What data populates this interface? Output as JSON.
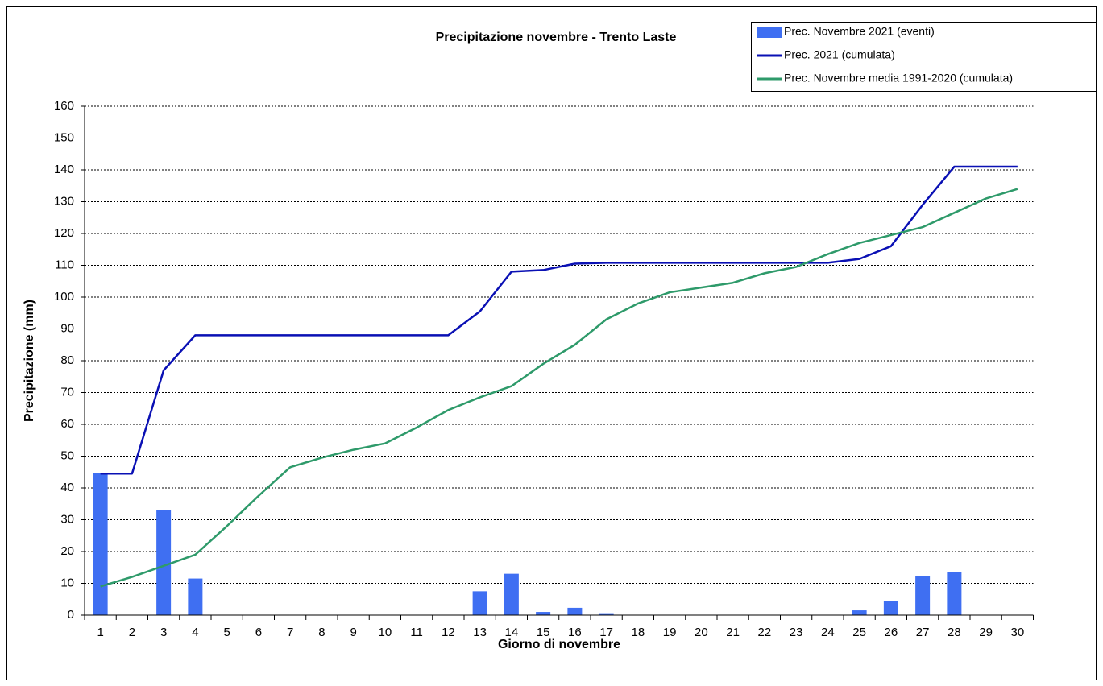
{
  "chart_data": {
    "type": "bar",
    "title": "Precipitazione novembre - Trento Laste",
    "xlabel": "Giorno di novembre",
    "ylabel": "Precipitazione (mm)",
    "categories": [
      "1",
      "2",
      "3",
      "4",
      "5",
      "6",
      "7",
      "8",
      "9",
      "10",
      "11",
      "12",
      "13",
      "14",
      "15",
      "16",
      "17",
      "18",
      "19",
      "20",
      "21",
      "22",
      "23",
      "24",
      "25",
      "26",
      "27",
      "28",
      "29",
      "30"
    ],
    "series": [
      {
        "name": "Prec. Novembre 2021 (eventi)",
        "type": "bar",
        "color": "#3f6ff2",
        "values": [
          44.7,
          0,
          33,
          11.5,
          0,
          0,
          0,
          0,
          0,
          0,
          0,
          0,
          7.5,
          13,
          1,
          2.3,
          0.6,
          0,
          0,
          0,
          0,
          0,
          0,
          0,
          1.5,
          4.5,
          12.3,
          13.5,
          0,
          0
        ]
      },
      {
        "name": "Prec. 2021 (cumulata)",
        "type": "line",
        "color": "#0a10b4",
        "values": [
          44.5,
          44.5,
          77,
          88,
          88,
          88,
          88,
          88,
          88,
          88,
          88,
          88,
          95.5,
          108,
          108.5,
          110.5,
          110.8,
          110.8,
          110.8,
          110.8,
          110.8,
          110.8,
          110.8,
          110.8,
          112,
          116,
          129,
          141,
          141,
          141
        ]
      },
      {
        "name": "Prec. Novembre media 1991-2020 (cumulata)",
        "type": "line",
        "color": "#2e9a6a",
        "values": [
          9,
          12,
          15.5,
          19,
          28,
          37.5,
          46.5,
          49.5,
          52,
          54,
          59,
          64.5,
          68.5,
          72,
          79,
          85,
          93,
          98,
          101.5,
          103,
          104.5,
          107.5,
          109.5,
          113.5,
          117,
          119.5,
          122,
          126.5,
          131,
          134
        ]
      }
    ],
    "ylim": [
      0,
      160
    ],
    "yticks": [
      0,
      10,
      20,
      30,
      40,
      50,
      60,
      70,
      80,
      90,
      100,
      110,
      120,
      130,
      140,
      150,
      160
    ],
    "grid": true,
    "legend": "top-right"
  }
}
